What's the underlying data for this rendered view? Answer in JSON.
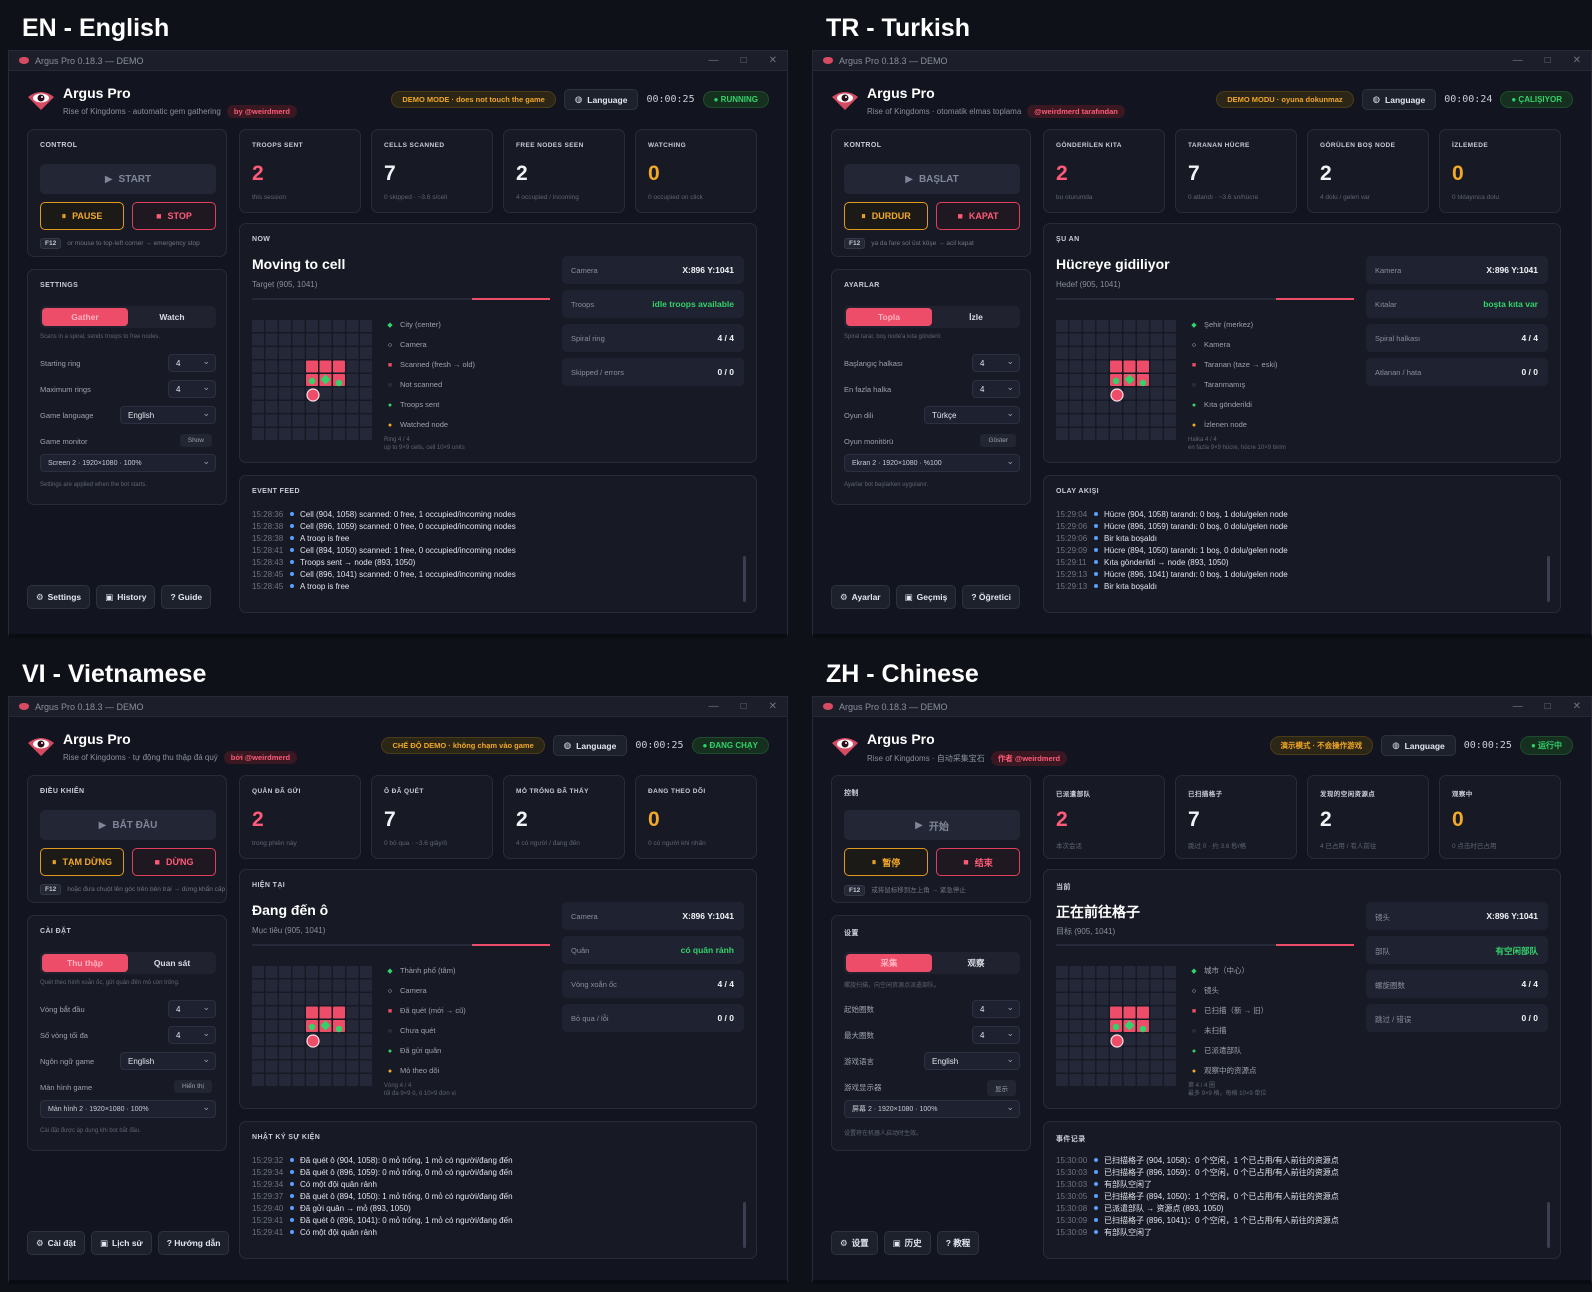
{
  "colors": {
    "accent": "#ee4d69",
    "warning": "#f2a928",
    "success": "#33d26b",
    "info": "#5aa0ff"
  },
  "quadrants": [
    {
      "label": "EN - English",
      "titlebar": "Argus Pro 0.18.3  —  DEMO",
      "app_name": "Argus Pro",
      "subtitle": "Rise of Kingdoms · automatic gem gathering",
      "byline": "by @weirdmerd",
      "demo_badge": "DEMO MODE · does not touch the game",
      "language_btn": "Language",
      "timer": "00:00:25",
      "status": "● RUNNING",
      "control": {
        "title": "CONTROL",
        "start": "START",
        "pause": "PAUSE",
        "stop": "STOP",
        "f12_key": "F12",
        "f12_text": "or mouse to top-left corner → emergency stop"
      },
      "stats": [
        {
          "label": "TROOPS SENT",
          "value": "2",
          "sub": "this session"
        },
        {
          "label": "CELLS SCANNED",
          "value": "7",
          "sub": "0 skipped · ~3.6 s/cell"
        },
        {
          "label": "FREE NODES SEEN",
          "value": "2",
          "sub": "4 occupied / incoming"
        },
        {
          "label": "WATCHING",
          "value": "0",
          "sub": "0 occupied on click"
        }
      ],
      "settings": {
        "title": "SETTINGS",
        "mode_a": "Gather",
        "mode_b": "Watch",
        "hint": "Scans in a spiral, sends troops to free nodes.",
        "starting_ring": "Starting ring",
        "starting_ring_val": "4",
        "max_rings": "Maximum rings",
        "max_rings_val": "4",
        "game_lang": "Game language",
        "game_lang_val": "English",
        "monitor": "Game monitor",
        "show": "Show",
        "monitor_val": "Screen 2 · 1920×1080 · 100%",
        "note": "Settings are applied when the bot starts."
      },
      "now": {
        "title": "NOW",
        "heading": "Moving to cell",
        "target": "Target (905, 1041)",
        "legend": [
          "City (center)",
          "Camera",
          "Scanned (fresh → old)",
          "Not scanned",
          "Troops sent",
          "Watched node"
        ],
        "ring_note": "Ring 4 / 4",
        "ring_sub": "up to 9×9 cells, cell 10×9 units"
      },
      "cards": [
        {
          "k": "Camera",
          "v": "X:896  Y:1041"
        },
        {
          "k": "Troops",
          "v": "idle troops available"
        },
        {
          "k": "Spiral ring",
          "v": "4 / 4"
        },
        {
          "k": "Skipped / errors",
          "v": "0 / 0"
        }
      ],
      "feed": {
        "title": "EVENT FEED",
        "lines": [
          {
            "t": "15:28:36",
            "m": "Cell (904, 1058) scanned: 0 free, 1 occupied/incoming nodes"
          },
          {
            "t": "15:28:38",
            "m": "Cell (896, 1059) scanned: 0 free, 0 occupied/incoming nodes"
          },
          {
            "t": "15:28:38",
            "m": "A troop is free"
          },
          {
            "t": "15:28:41",
            "m": "Cell (894, 1050) scanned: 1 free, 0 occupied/incoming nodes"
          },
          {
            "t": "15:28:43",
            "m": "Troops sent → node (893, 1050)"
          },
          {
            "t": "15:28:45",
            "m": "Cell (896, 1041) scanned: 0 free, 1 occupied/incoming nodes"
          },
          {
            "t": "15:28:45",
            "m": "A troop is free"
          }
        ]
      },
      "footer": {
        "settings": "Settings",
        "history": "History",
        "guide": "? Guide"
      }
    },
    {
      "label": "TR - Turkish",
      "titlebar": "Argus Pro 0.18.3  —  DEMO",
      "app_name": "Argus Pro",
      "subtitle": "Rise of Kingdoms · otomatik elmas toplama",
      "byline": "@weirdmerd tarafından",
      "demo_badge": "DEMO MODU · oyuna dokunmaz",
      "language_btn": "Language",
      "timer": "00:00:24",
      "status": "● ÇALIŞIYOR",
      "control": {
        "title": "KONTROL",
        "start": "BAŞLAT",
        "pause": "DURDUR",
        "stop": "KAPAT",
        "f12_key": "F12",
        "f12_text": "ya da fare sol üst köşe → acil kapat"
      },
      "stats": [
        {
          "label": "GÖNDERİLEN KITA",
          "value": "2",
          "sub": "bu oturumda"
        },
        {
          "label": "TARANAN HÜCRE",
          "value": "7",
          "sub": "0 atlandı · ~3.6 sn/hücre"
        },
        {
          "label": "GÖRÜLEN BOŞ NODE",
          "value": "2",
          "sub": "4 dolu / gelen var"
        },
        {
          "label": "İZLEMEDE",
          "value": "0",
          "sub": "0 tıklayınca dolu"
        }
      ],
      "settings": {
        "title": "AYARLAR",
        "mode_a": "Topla",
        "mode_b": "İzle",
        "hint": "Spiral tarar, boş node'a kıta gönderir.",
        "starting_ring": "Başlangıç halkası",
        "starting_ring_val": "4",
        "max_rings": "En fazla halka",
        "max_rings_val": "4",
        "game_lang": "Oyun dili",
        "game_lang_val": "Türkçe",
        "monitor": "Oyun monitörü",
        "show": "Göster",
        "monitor_val": "Ekran 2 · 1920×1080 · %100",
        "note": "Ayarlar bot başlarken uygulanır."
      },
      "now": {
        "title": "ŞU AN",
        "heading": "Hücreye gidiliyor",
        "target": "Hedef (905, 1041)",
        "legend": [
          "Şehir (merkez)",
          "Kamera",
          "Taranan (taze → eski)",
          "Taranmamış",
          "Kıta gönderildi",
          "İzlenen node"
        ],
        "ring_note": "Halka 4 / 4",
        "ring_sub": "en fazla 9×9 hücre, hücre 10×9 birim"
      },
      "cards": [
        {
          "k": "Kamera",
          "v": "X:896  Y:1041"
        },
        {
          "k": "Kıtalar",
          "v": "boşta kıta var"
        },
        {
          "k": "Spiral halkası",
          "v": "4 / 4"
        },
        {
          "k": "Atlanan / hata",
          "v": "0 / 0"
        }
      ],
      "feed": {
        "title": "OLAY AKIŞI",
        "lines": [
          {
            "t": "15:29:04",
            "m": "Hücre (904, 1058) tarandı: 0 boş, 1 dolu/gelen node"
          },
          {
            "t": "15:29:06",
            "m": "Hücre (896, 1059) tarandı: 0 boş, 0 dolu/gelen node"
          },
          {
            "t": "15:29:06",
            "m": "Bir kıta boşaldı"
          },
          {
            "t": "15:29:09",
            "m": "Hücre (894, 1050) tarandı: 1 boş, 0 dolu/gelen node"
          },
          {
            "t": "15:29:11",
            "m": "Kıta gönderildi → node (893, 1050)"
          },
          {
            "t": "15:29:13",
            "m": "Hücre (896, 1041) tarandı: 0 boş, 1 dolu/gelen node"
          },
          {
            "t": "15:29:13",
            "m": "Bir kıta boşaldı"
          }
        ]
      },
      "footer": {
        "settings": "Ayarlar",
        "history": "Geçmiş",
        "guide": "? Öğretici"
      }
    },
    {
      "label": "VI - Vietnamese",
      "titlebar": "Argus Pro 0.18.3  —  DEMO",
      "app_name": "Argus Pro",
      "subtitle": "Rise of Kingdoms · tự động thu thập đá quý",
      "byline": "bởi @weirdmerd",
      "demo_badge": "CHẾ ĐỘ DEMO · không chạm vào game",
      "language_btn": "Language",
      "timer": "00:00:25",
      "status": "● ĐANG CHẠY",
      "control": {
        "title": "ĐIỀU KHIỂN",
        "start": "BẮT ĐẦU",
        "pause": "TẠM DỪNG",
        "stop": "DỪNG",
        "f12_key": "F12",
        "f12_text": "hoặc đưa chuột lên góc trên bên trái → dừng khẩn cấp"
      },
      "stats": [
        {
          "label": "QUÂN ĐÃ GỬI",
          "value": "2",
          "sub": "trong phiên này"
        },
        {
          "label": "Ô ĐÃ QUÉT",
          "value": "7",
          "sub": "0 bỏ qua · ~3.6 giây/ô"
        },
        {
          "label": "MỎ TRỐNG ĐÃ THẤY",
          "value": "2",
          "sub": "4 có người / đang đến"
        },
        {
          "label": "ĐANG THEO DÕI",
          "value": "0",
          "sub": "0 có người khi nhấn"
        }
      ],
      "settings": {
        "title": "CÀI ĐẶT",
        "mode_a": "Thu thập",
        "mode_b": "Quan sát",
        "hint": "Quét theo hình xoắn ốc, gửi quân đến mỏ còn trống.",
        "starting_ring": "Vòng bắt đầu",
        "starting_ring_val": "4",
        "max_rings": "Số vòng tối đa",
        "max_rings_val": "4",
        "game_lang": "Ngôn ngữ game",
        "game_lang_val": "English",
        "monitor": "Màn hình game",
        "show": "Hiển thị",
        "monitor_val": "Màn hình 2 · 1920×1080 · 100%",
        "note": "Cài đặt được áp dụng khi bot bắt đầu."
      },
      "now": {
        "title": "HIỆN TẠI",
        "heading": "Đang đến ô",
        "target": "Mục tiêu (905, 1041)",
        "legend": [
          "Thành phố (tâm)",
          "Camera",
          "Đã quét (mới → cũ)",
          "Chưa quét",
          "Đã gửi quân",
          "Mỏ theo dõi"
        ],
        "ring_note": "Vòng 4 / 4",
        "ring_sub": "tối đa 9×9 ô, ô 10×9 đơn vị"
      },
      "cards": [
        {
          "k": "Camera",
          "v": "X:896  Y:1041"
        },
        {
          "k": "Quân",
          "v": "có quân rảnh"
        },
        {
          "k": "Vòng xoắn ốc",
          "v": "4 / 4"
        },
        {
          "k": "Bỏ qua / lỗi",
          "v": "0 / 0"
        }
      ],
      "feed": {
        "title": "NHẬT KÝ SỰ KIỆN",
        "lines": [
          {
            "t": "15:29:32",
            "m": "Đã quét ô (904, 1058): 0 mỏ trống, 1 mỏ có người/đang đến"
          },
          {
            "t": "15:29:34",
            "m": "Đã quét ô (896, 1059): 0 mỏ trống, 0 mỏ có người/đang đến"
          },
          {
            "t": "15:29:34",
            "m": "Có một đội quân rảnh"
          },
          {
            "t": "15:29:37",
            "m": "Đã quét ô (894, 1050): 1 mỏ trống, 0 mỏ có người/đang đến"
          },
          {
            "t": "15:29:40",
            "m": "Đã gửi quân → mỏ (893, 1050)"
          },
          {
            "t": "15:29:41",
            "m": "Đã quét ô (896, 1041): 0 mỏ trống, 1 mỏ có người/đang đến"
          },
          {
            "t": "15:29:41",
            "m": "Có một đội quân rảnh"
          }
        ]
      },
      "footer": {
        "settings": "Cài đặt",
        "history": "Lịch sử",
        "guide": "? Hướng dẫn"
      }
    },
    {
      "label": "ZH - Chinese",
      "titlebar": "Argus Pro 0.18.3  —  DEMO",
      "app_name": "Argus Pro",
      "subtitle": "Rise of Kingdoms · 自动采集宝石",
      "byline": "作者 @weirdmerd",
      "demo_badge": "演示模式 · 不会操作游戏",
      "language_btn": "Language",
      "timer": "00:00:25",
      "status": "● 运行中",
      "control": {
        "title": "控制",
        "start": "开始",
        "pause": "暂停",
        "stop": "结束",
        "f12_key": "F12",
        "f12_text": "或将鼠标移到左上角 → 紧急停止"
      },
      "stats": [
        {
          "label": "已派遣部队",
          "value": "2",
          "sub": "本次会话"
        },
        {
          "label": "已扫描格子",
          "value": "7",
          "sub": "跳过 0 · 约 3.6 秒/格"
        },
        {
          "label": "发现的空闲资源点",
          "value": "2",
          "sub": "4 已占用 / 有人前往"
        },
        {
          "label": "观察中",
          "value": "0",
          "sub": "0 点击时已占用"
        }
      ],
      "settings": {
        "title": "设置",
        "mode_a": "采集",
        "mode_b": "观察",
        "hint": "螺旋扫描，向空闲资源点派遣部队。",
        "starting_ring": "起始圈数",
        "starting_ring_val": "4",
        "max_rings": "最大圈数",
        "max_rings_val": "4",
        "game_lang": "游戏语言",
        "game_lang_val": "English",
        "monitor": "游戏显示器",
        "show": "显示",
        "monitor_val": "屏幕 2 · 1920×1080 · 100%",
        "note": "设置将在机器人启动时生效。"
      },
      "now": {
        "title": "当前",
        "heading": "正在前往格子",
        "target": "目标 (905, 1041)",
        "legend": [
          "城市（中心）",
          "镜头",
          "已扫描（新 → 旧）",
          "未扫描",
          "已派遣部队",
          "观察中的资源点"
        ],
        "ring_note": "第 4 / 4 圈",
        "ring_sub": "最多 9×9 格，每格 10×9 单位"
      },
      "cards": [
        {
          "k": "镜头",
          "v": "X:896  Y:1041"
        },
        {
          "k": "部队",
          "v": "有空闲部队"
        },
        {
          "k": "螺旋圈数",
          "v": "4 / 4"
        },
        {
          "k": "跳过 / 错误",
          "v": "0 / 0"
        }
      ],
      "feed": {
        "title": "事件记录",
        "lines": [
          {
            "t": "15:30:00",
            "m": "已扫描格子 (904, 1058)：0 个空闲，1 个已占用/有人前往的资源点"
          },
          {
            "t": "15:30:03",
            "m": "已扫描格子 (896, 1059)：0 个空闲，0 个已占用/有人前往的资源点"
          },
          {
            "t": "15:30:03",
            "m": "有部队空闲了"
          },
          {
            "t": "15:30:05",
            "m": "已扫描格子 (894, 1050)：1 个空闲，0 个已占用/有人前往的资源点"
          },
          {
            "t": "15:30:08",
            "m": "已派遣部队 → 资源点 (893, 1050)"
          },
          {
            "t": "15:30:09",
            "m": "已扫描格子 (896, 1041)：0 个空闲，1 个已占用/有人前往的资源点"
          },
          {
            "t": "15:30:09",
            "m": "有部队空闲了"
          }
        ]
      },
      "footer": {
        "settings": "设置",
        "history": "历史",
        "guide": "? 教程"
      }
    }
  ]
}
